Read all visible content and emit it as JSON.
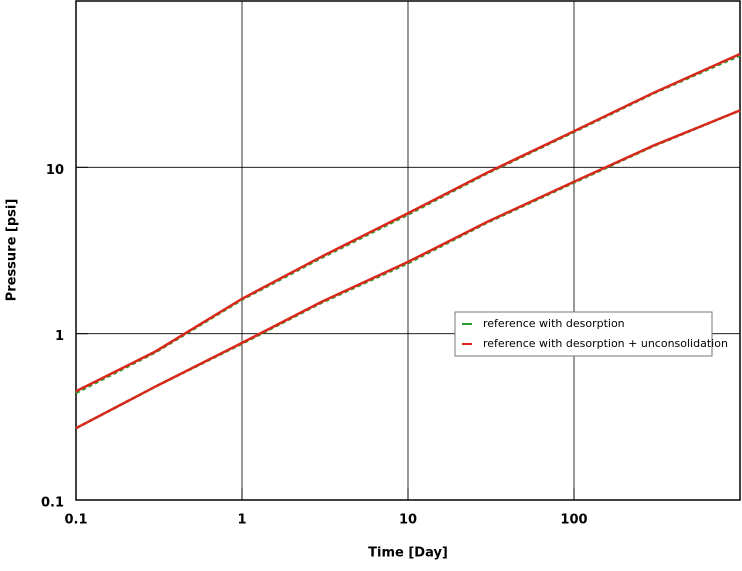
{
  "chart_data": {
    "type": "line",
    "x_label": "Time [Day]",
    "y_label": "Pressure [psi]",
    "x": [
      0.1,
      0.3,
      1,
      3,
      10,
      30,
      100,
      300,
      1000
    ],
    "series": [
      {
        "name": "reference with desorption",
        "color": "#2e9e2e",
        "dashed": true,
        "values": [
          0.44,
          0.77,
          1.6,
          2.85,
          5.2,
          9.2,
          16.3,
          27.8,
          47
        ]
      },
      {
        "color": "#2e9e2e",
        "dashed": true,
        "values": [
          0.27,
          0.48,
          0.87,
          1.53,
          2.65,
          4.65,
          8.1,
          13.4,
          22
        ]
      },
      {
        "name": "reference with desorption + unconsolidation",
        "color": "#d8281c",
        "dashed": false,
        "values": [
          0.45,
          0.78,
          1.62,
          2.9,
          5.3,
          9.3,
          16.5,
          28,
          48
        ]
      },
      {
        "color": "#d8281c",
        "dashed": false,
        "values": [
          0.27,
          0.48,
          0.88,
          1.55,
          2.7,
          4.7,
          8.2,
          13.5,
          22
        ]
      }
    ],
    "xlim": [
      0.1,
      1000
    ],
    "ylim": [
      0.1,
      100
    ],
    "xticks": [
      0.1,
      1,
      10,
      100
    ],
    "yticks": [
      0.1,
      1,
      10
    ],
    "xscale": "log",
    "yscale": "log",
    "grid": true
  }
}
